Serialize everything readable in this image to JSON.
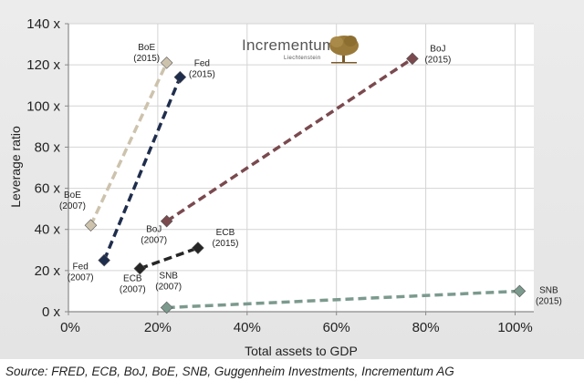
{
  "chart_data": {
    "type": "scatter",
    "title": "",
    "xlabel": "Total assets to GDP",
    "ylabel": "Leverage ratio",
    "xlim": [
      0,
      105
    ],
    "ylim": [
      0,
      140
    ],
    "x_ticks": [
      0,
      20,
      40,
      60,
      80,
      100
    ],
    "x_tick_labels": [
      "0%",
      "20%",
      "40%",
      "60%",
      "80%",
      "100%"
    ],
    "y_ticks": [
      0,
      20,
      40,
      60,
      80,
      100,
      120,
      140
    ],
    "y_tick_labels": [
      "0 x",
      "20 x",
      "40 x",
      "60 x",
      "80 x",
      "100 x",
      "120 x",
      "140 x"
    ],
    "grid": true,
    "series": [
      {
        "name": "BoE",
        "color": "#cdc3ad",
        "points": [
          {
            "x": 5,
            "y": 42,
            "label": [
              "BoE",
              "(2007)"
            ]
          },
          {
            "x": 22,
            "y": 121,
            "label": [
              "BoE",
              "(2015)"
            ]
          }
        ]
      },
      {
        "name": "Fed",
        "color": "#1f2d4d",
        "points": [
          {
            "x": 8,
            "y": 25,
            "label": [
              "Fed",
              "(2007)"
            ]
          },
          {
            "x": 25,
            "y": 114,
            "label": [
              "Fed",
              "(2015)"
            ]
          }
        ]
      },
      {
        "name": "BoJ",
        "color": "#7a4a4f",
        "points": [
          {
            "x": 22,
            "y": 44,
            "label": [
              "BoJ",
              "(2007)"
            ]
          },
          {
            "x": 77,
            "y": 123,
            "label": [
              "BoJ",
              "(2015)"
            ]
          }
        ]
      },
      {
        "name": "ECB",
        "color": "#262626",
        "points": [
          {
            "x": 16,
            "y": 21,
            "label": [
              "ECB",
              "(2007)"
            ]
          },
          {
            "x": 29,
            "y": 31,
            "label": [
              "ECB",
              "(2015)"
            ]
          }
        ]
      },
      {
        "name": "SNB",
        "color": "#7c9a8e",
        "points": [
          {
            "x": 22,
            "y": 2,
            "label": [
              "SNB",
              "(2007)"
            ]
          },
          {
            "x": 101,
            "y": 10,
            "label": [
              "SNB",
              "(2015)"
            ]
          }
        ]
      }
    ]
  },
  "logo": {
    "name": "Incrementum",
    "sub": "Liechtenstein",
    "tree_color": "#9a7a3a"
  },
  "source": "Source: FRED, ECB, BoJ, BoE, SNB, Guggenheim Investments, Incrementum AG"
}
